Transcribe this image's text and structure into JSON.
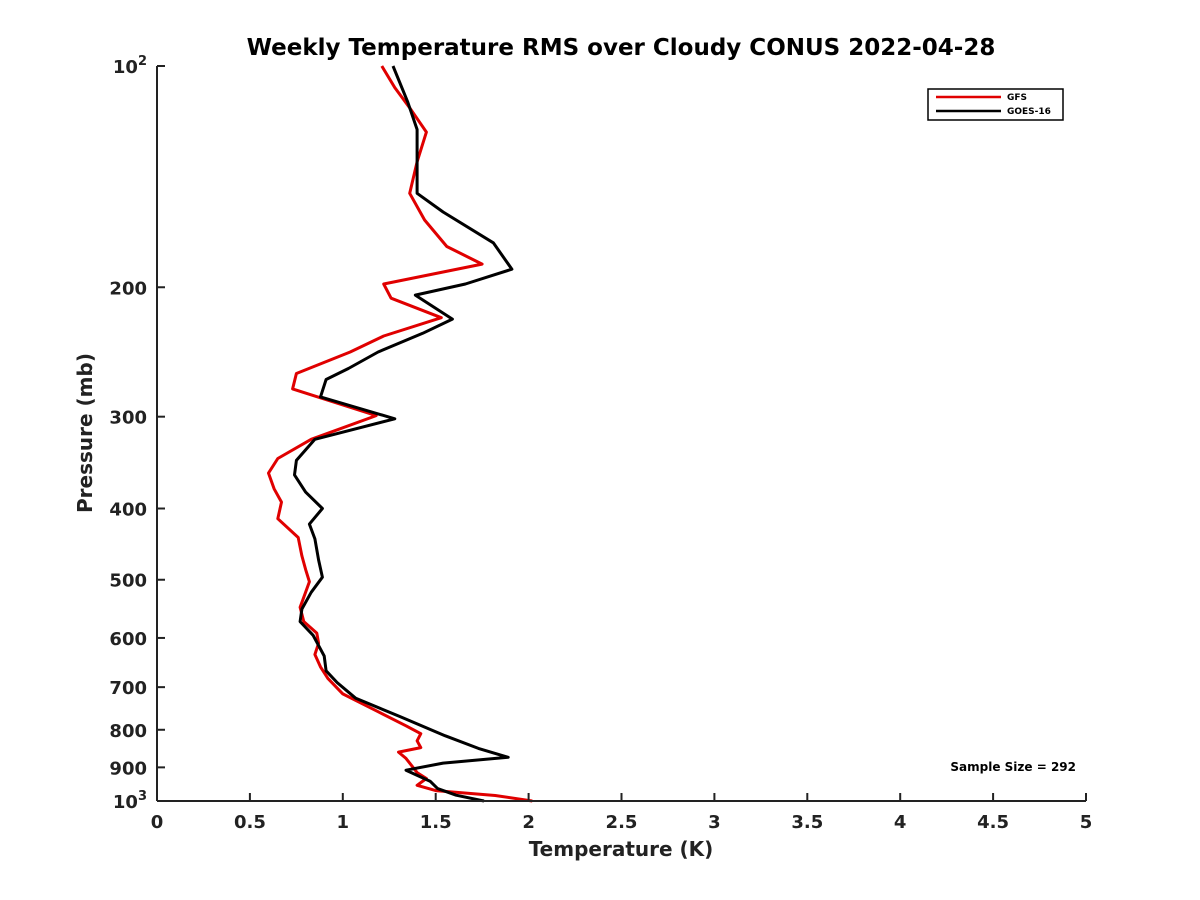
{
  "chart_data": {
    "type": "line",
    "title": "Weekly Temperature RMS over Cloudy CONUS 2022-04-28",
    "xlabel": "Temperature (K)",
    "ylabel": "Pressure (mb)",
    "xlim": [
      0,
      5
    ],
    "ylim": [
      100,
      1000
    ],
    "y_scale": "log",
    "y_reversed": true,
    "x_ticks": [
      "0",
      "0.5",
      "1",
      "1.5",
      "2",
      "2.5",
      "3",
      "3.5",
      "4",
      "4.5",
      "5"
    ],
    "y_ticks": [
      {
        "value": 100,
        "base": "10",
        "exp": "2"
      },
      {
        "value": 200,
        "label": "200"
      },
      {
        "value": 300,
        "label": "300"
      },
      {
        "value": 400,
        "label": "400"
      },
      {
        "value": 500,
        "label": "500"
      },
      {
        "value": 600,
        "label": "600"
      },
      {
        "value": 700,
        "label": "700"
      },
      {
        "value": 800,
        "label": "800"
      },
      {
        "value": 900,
        "label": "900"
      },
      {
        "value": 1000,
        "base": "10",
        "exp": "3"
      }
    ],
    "legend_position": "top-right",
    "grid": false,
    "annotation": "Sample Size = 292",
    "series": [
      {
        "name": "GFS",
        "color": "#e00000",
        "points": [
          [
            1.21,
            100
          ],
          [
            1.28,
            107
          ],
          [
            1.36,
            114
          ],
          [
            1.45,
            123
          ],
          [
            1.4,
            135
          ],
          [
            1.36,
            149
          ],
          [
            1.44,
            162
          ],
          [
            1.56,
            176
          ],
          [
            1.75,
            186
          ],
          [
            1.22,
            198
          ],
          [
            1.26,
            207
          ],
          [
            1.53,
            220
          ],
          [
            1.22,
            233
          ],
          [
            1.04,
            245
          ],
          [
            0.75,
            262
          ],
          [
            0.73,
            275
          ],
          [
            1.18,
            299
          ],
          [
            0.83,
            322
          ],
          [
            0.65,
            342
          ],
          [
            0.6,
            358
          ],
          [
            0.63,
            376
          ],
          [
            0.67,
            392
          ],
          [
            0.65,
            413
          ],
          [
            0.76,
            438
          ],
          [
            0.78,
            464
          ],
          [
            0.8,
            484
          ],
          [
            0.82,
            503
          ],
          [
            0.8,
            520
          ],
          [
            0.77,
            545
          ],
          [
            0.79,
            570
          ],
          [
            0.86,
            591
          ],
          [
            0.87,
            610
          ],
          [
            0.85,
            632
          ],
          [
            0.88,
            657
          ],
          [
            0.92,
            681
          ],
          [
            1.0,
            715
          ],
          [
            1.19,
            756
          ],
          [
            1.34,
            790
          ],
          [
            1.42,
            810
          ],
          [
            1.4,
            828
          ],
          [
            1.42,
            846
          ],
          [
            1.3,
            858
          ],
          [
            1.34,
            875
          ],
          [
            1.4,
            915
          ],
          [
            1.45,
            932
          ],
          [
            1.4,
            952
          ],
          [
            1.5,
            968
          ],
          [
            1.82,
            983
          ],
          [
            2.02,
            1000
          ]
        ]
      },
      {
        "name": "GOES-16",
        "color": "#000000",
        "points": [
          [
            1.27,
            100
          ],
          [
            1.35,
            112
          ],
          [
            1.4,
            122
          ],
          [
            1.4,
            140
          ],
          [
            1.4,
            149
          ],
          [
            1.54,
            158
          ],
          [
            1.81,
            174
          ],
          [
            1.91,
            189
          ],
          [
            1.66,
            198
          ],
          [
            1.39,
            205
          ],
          [
            1.59,
            221
          ],
          [
            1.43,
            231
          ],
          [
            1.19,
            245
          ],
          [
            1.03,
            258
          ],
          [
            0.91,
            267
          ],
          [
            0.88,
            282
          ],
          [
            1.28,
            302
          ],
          [
            0.85,
            322
          ],
          [
            0.75,
            344
          ],
          [
            0.74,
            360
          ],
          [
            0.8,
            380
          ],
          [
            0.89,
            400
          ],
          [
            0.82,
            420
          ],
          [
            0.85,
            440
          ],
          [
            0.87,
            470
          ],
          [
            0.89,
            496
          ],
          [
            0.83,
            520
          ],
          [
            0.78,
            548
          ],
          [
            0.77,
            570
          ],
          [
            0.84,
            595
          ],
          [
            0.9,
            635
          ],
          [
            0.91,
            665
          ],
          [
            0.97,
            690
          ],
          [
            1.07,
            725
          ],
          [
            1.31,
            768
          ],
          [
            1.55,
            815
          ],
          [
            1.73,
            848
          ],
          [
            1.89,
            872
          ],
          [
            1.54,
            888
          ],
          [
            1.34,
            908
          ],
          [
            1.47,
            940
          ],
          [
            1.51,
            962
          ],
          [
            1.61,
            982
          ],
          [
            1.76,
            1000
          ]
        ]
      }
    ]
  }
}
